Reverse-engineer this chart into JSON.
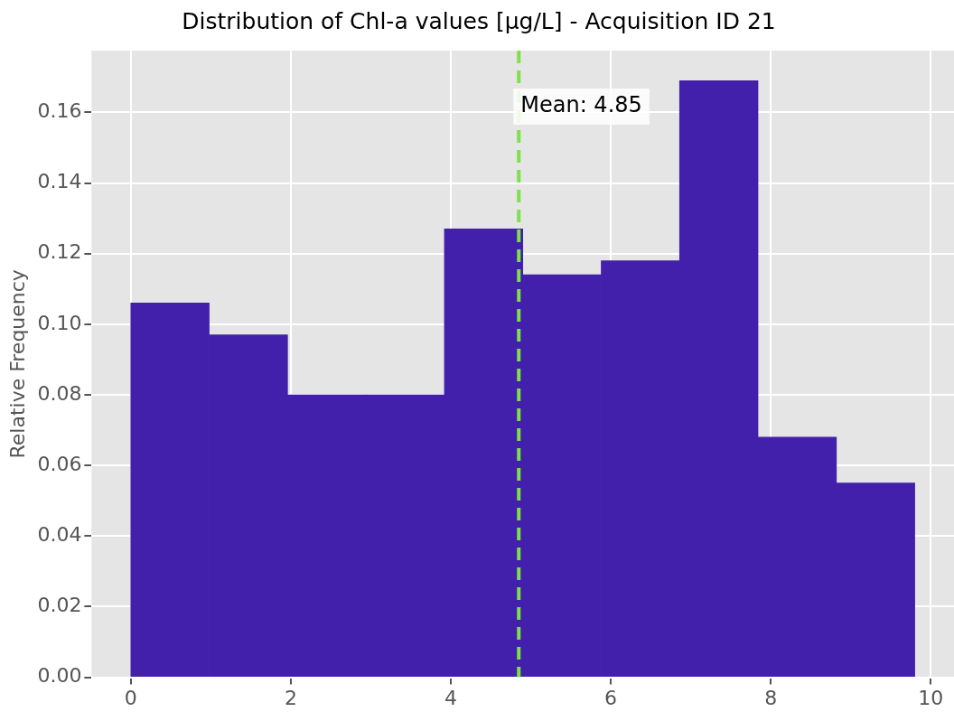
{
  "chart_data": {
    "type": "histogram",
    "title": "Distribution of Chl-a values [µg/L] - Acquisition ID 21",
    "ylabel": "Relative Frequency",
    "bins": [
      0,
      0.98,
      1.96,
      2.94,
      3.92,
      4.9,
      5.88,
      6.86,
      7.84,
      8.82,
      9.8
    ],
    "values": [
      0.106,
      0.097,
      0.08,
      0.08,
      0.127,
      0.114,
      0.118,
      0.169,
      0.068,
      0.055
    ],
    "color": "#4320ab",
    "xlim": [
      -0.49,
      10.29
    ],
    "xticks": [
      0,
      2,
      4,
      6,
      8,
      10
    ],
    "ylim": [
      0,
      0.1775
    ],
    "yticks": [
      {
        "value": 0,
        "label": "0.00"
      },
      {
        "value": 0.02,
        "label": "0.02"
      },
      {
        "value": 0.04,
        "label": "0.04"
      },
      {
        "value": 0.06,
        "label": "0.06"
      },
      {
        "value": 0.08,
        "label": "0.08"
      },
      {
        "value": 0.1,
        "label": "0.10"
      },
      {
        "value": 0.12,
        "label": "0.12"
      },
      {
        "value": 0.14,
        "label": "0.14"
      },
      {
        "value": 0.16,
        "label": "0.16"
      }
    ],
    "ref_lines": [
      {
        "axis": "x",
        "value": 4.85,
        "label": "Mean: 4.85",
        "color": "#7ee04a",
        "line_style": "dashed"
      }
    ],
    "grid": true
  }
}
